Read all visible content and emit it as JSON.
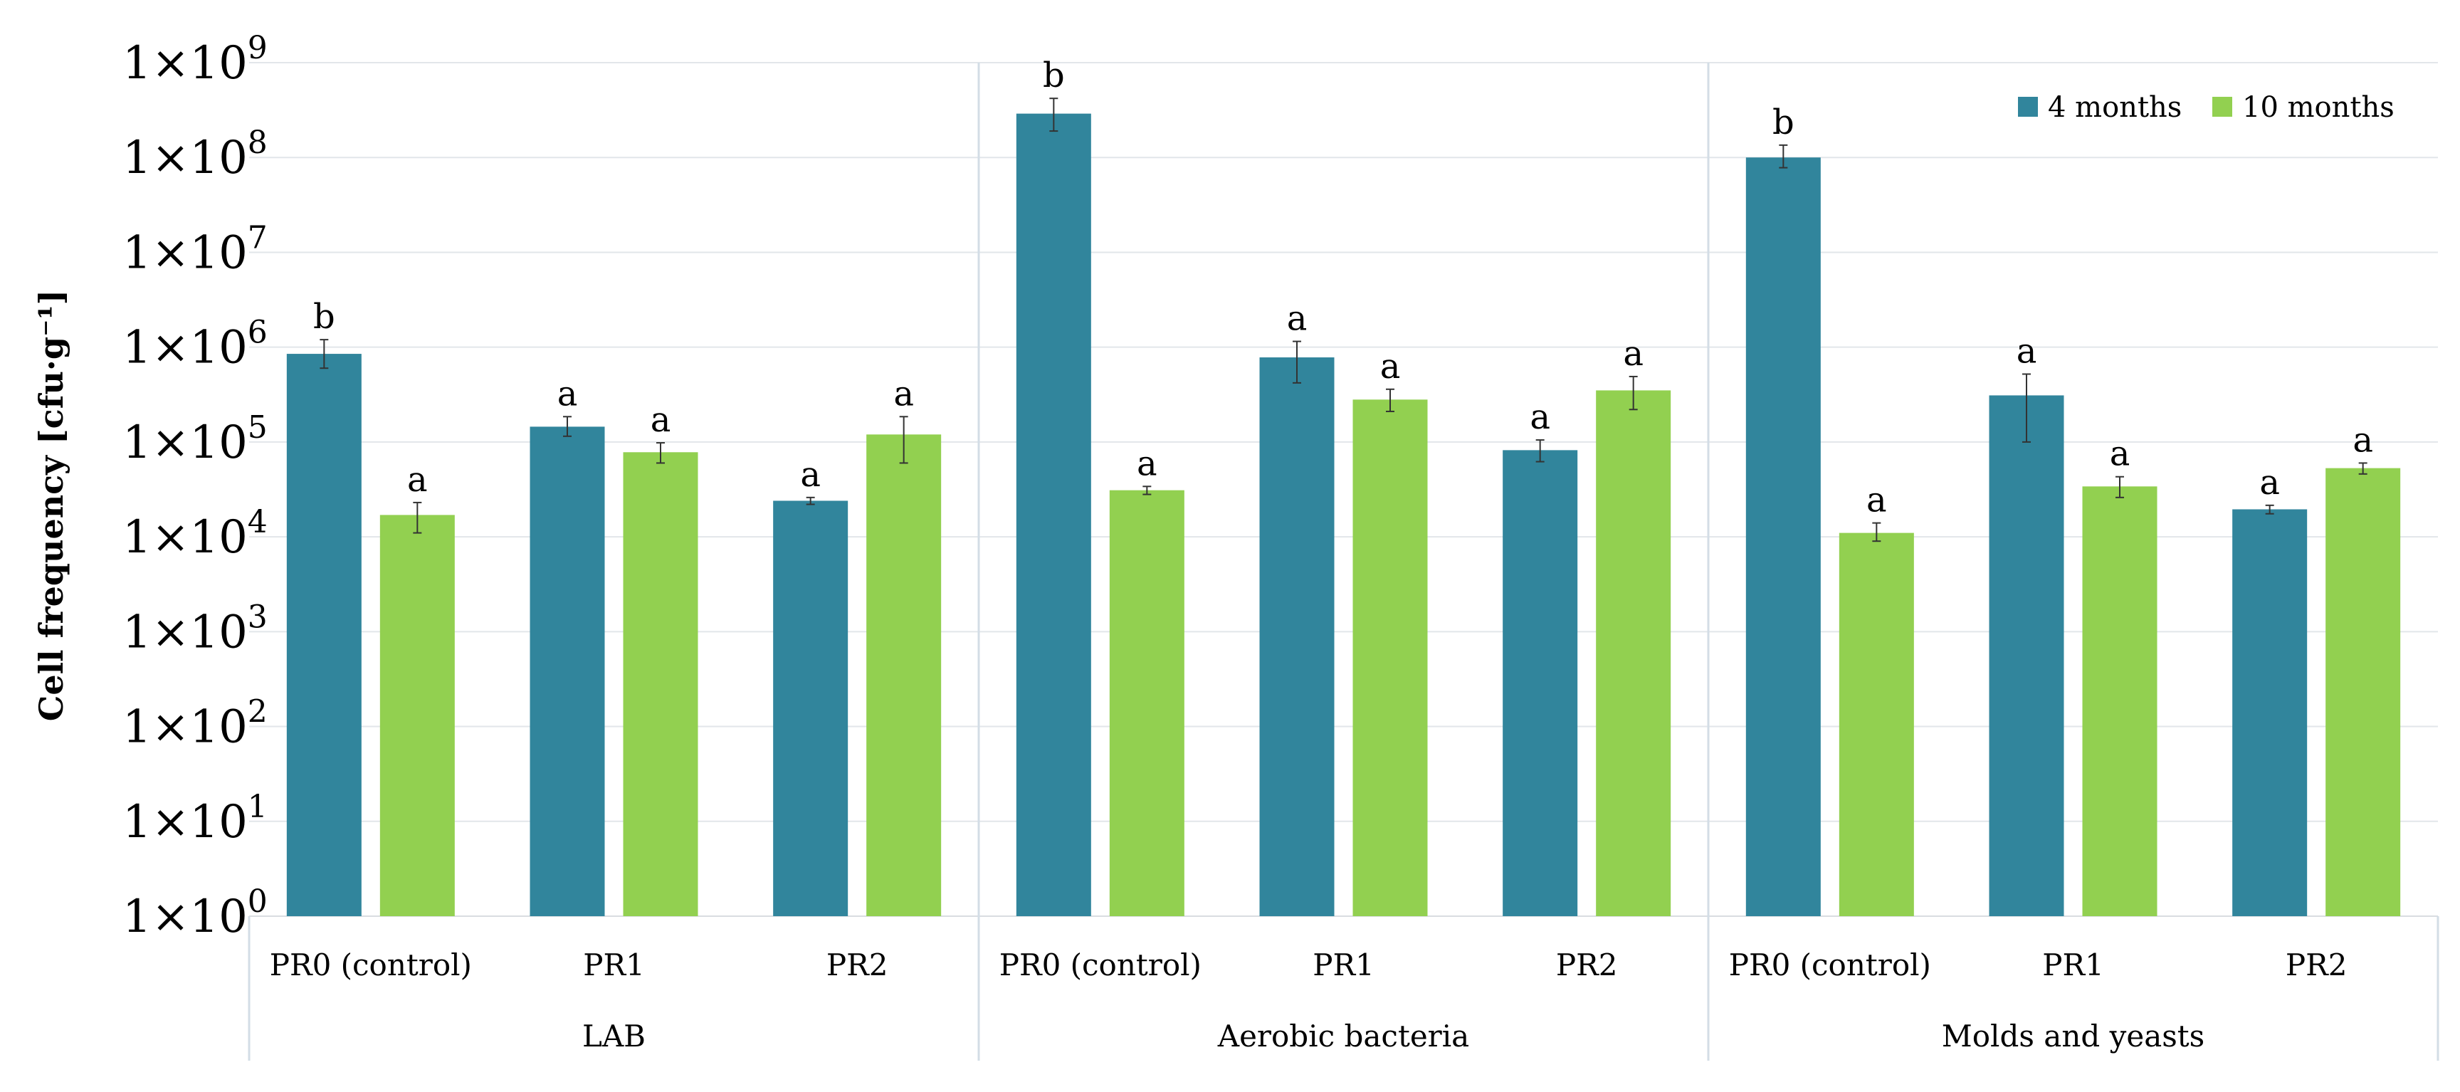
{
  "chart_data": {
    "type": "bar",
    "scale": "log10",
    "ylabel": "Cell frequency [cfu·g⁻¹]",
    "ylim": [
      1,
      1000000000
    ],
    "y_ticks": [
      {
        "exp": 0,
        "label": "1×10",
        "sup": "0"
      },
      {
        "exp": 1,
        "label": "1×10",
        "sup": "1"
      },
      {
        "exp": 2,
        "label": "1×10",
        "sup": "2"
      },
      {
        "exp": 3,
        "label": "1×10",
        "sup": "3"
      },
      {
        "exp": 4,
        "label": "1×10",
        "sup": "4"
      },
      {
        "exp": 5,
        "label": "1×10",
        "sup": "5"
      },
      {
        "exp": 6,
        "label": "1×10",
        "sup": "6"
      },
      {
        "exp": 7,
        "label": "1×10",
        "sup": "7"
      },
      {
        "exp": 8,
        "label": "1×10",
        "sup": "8"
      },
      {
        "exp": 9,
        "label": "1×10",
        "sup": "9"
      }
    ],
    "legend": [
      {
        "name": "4 months",
        "color": "#31859c"
      },
      {
        "name": "10 months",
        "color": "#92d050"
      }
    ],
    "legend_position": "top-right",
    "groups": [
      {
        "name": "LAB",
        "categories": [
          {
            "name": "PR0 (control)",
            "bars": [
              {
                "series": "4 months",
                "value": 850000,
                "err_low": 600000,
                "err_high": 1200000,
                "sig": "b"
              },
              {
                "series": "10 months",
                "value": 17000,
                "err_low": 11000,
                "err_high": 23000,
                "sig": "a"
              }
            ]
          },
          {
            "name": "PR1",
            "bars": [
              {
                "series": "4 months",
                "value": 145000,
                "err_low": 115000,
                "err_high": 185000,
                "sig": "a"
              },
              {
                "series": "10 months",
                "value": 78000,
                "err_low": 60000,
                "err_high": 98000,
                "sig": "a"
              }
            ]
          },
          {
            "name": "PR2",
            "bars": [
              {
                "series": "4 months",
                "value": 24000,
                "err_low": 22000,
                "err_high": 26000,
                "sig": "a"
              },
              {
                "series": "10 months",
                "value": 120000,
                "err_low": 60000,
                "err_high": 185000,
                "sig": "a"
              }
            ]
          }
        ]
      },
      {
        "name": "Aerobic bacteria",
        "categories": [
          {
            "name": "PR0 (control)",
            "bars": [
              {
                "series": "4 months",
                "value": 290000000,
                "err_low": 190000000,
                "err_high": 420000000,
                "sig": "b"
              },
              {
                "series": "10 months",
                "value": 31000,
                "err_low": 28000,
                "err_high": 34000,
                "sig": "a"
              }
            ]
          },
          {
            "name": "PR1",
            "bars": [
              {
                "series": "4 months",
                "value": 780000,
                "err_low": 420000,
                "err_high": 1150000,
                "sig": "a"
              },
              {
                "series": "10 months",
                "value": 280000,
                "err_low": 210000,
                "err_high": 360000,
                "sig": "a"
              }
            ]
          },
          {
            "name": "PR2",
            "bars": [
              {
                "series": "4 months",
                "value": 82000,
                "err_low": 62000,
                "err_high": 105000,
                "sig": "a"
              },
              {
                "series": "10 months",
                "value": 350000,
                "err_low": 220000,
                "err_high": 490000,
                "sig": "a"
              }
            ]
          }
        ]
      },
      {
        "name": "Molds and yeasts",
        "categories": [
          {
            "name": "PR0 (control)",
            "bars": [
              {
                "series": "4 months",
                "value": 100000000,
                "err_low": 78000000,
                "err_high": 135000000,
                "sig": "b"
              },
              {
                "series": "10 months",
                "value": 11000,
                "err_low": 9000,
                "err_high": 14000,
                "sig": "a"
              }
            ]
          },
          {
            "name": "PR1",
            "bars": [
              {
                "series": "4 months",
                "value": 310000,
                "err_low": 100000,
                "err_high": 520000,
                "sig": "a"
              },
              {
                "series": "10 months",
                "value": 34000,
                "err_low": 26000,
                "err_high": 43000,
                "sig": "a"
              }
            ]
          },
          {
            "name": "PR2",
            "bars": [
              {
                "series": "4 months",
                "value": 19500,
                "err_low": 17500,
                "err_high": 21500,
                "sig": "a"
              },
              {
                "series": "10 months",
                "value": 53000,
                "err_low": 46000,
                "err_high": 60000,
                "sig": "a"
              }
            ]
          }
        ]
      }
    ]
  }
}
